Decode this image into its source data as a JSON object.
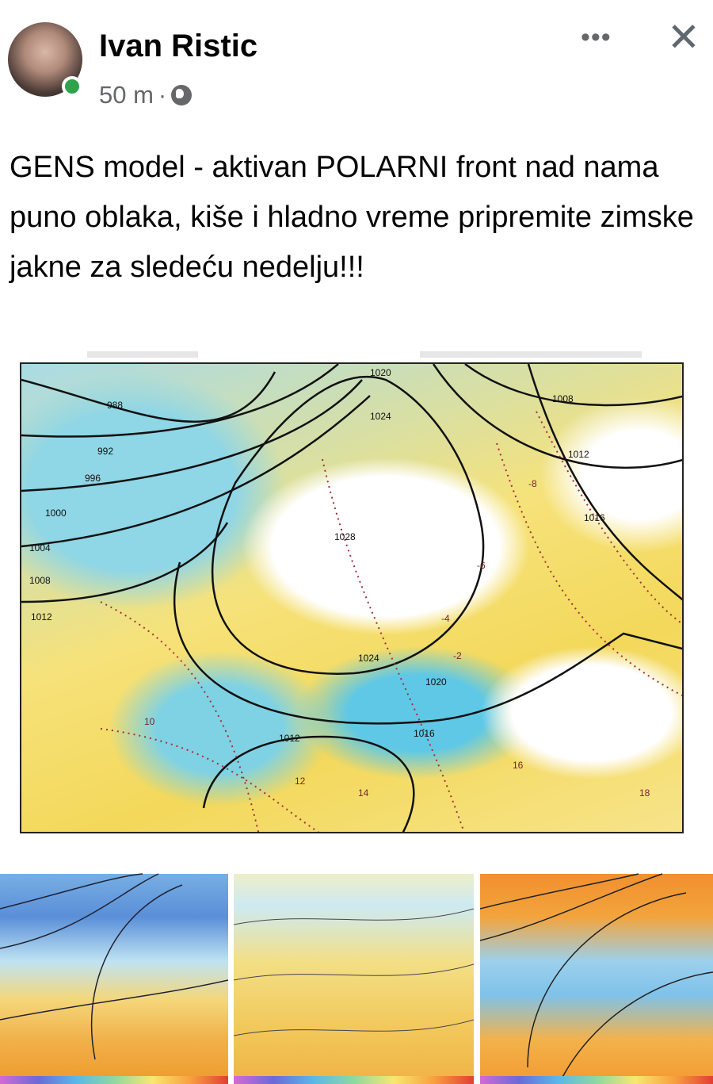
{
  "post": {
    "author": "Ivan Ristic",
    "time": "50 m",
    "separator": "·",
    "audience_icon": "globe-icon",
    "online_color": "#31a24c",
    "more_label": "•••",
    "close_label": "✕",
    "text": "GENS model - aktivan POLARNI front nad nama puno oblaka, kiše i hladno vreme pripremite zimske jakne za sledeću nedelju!!!"
  },
  "main_map": {
    "isobar_labels": [
      "1020",
      "1008",
      "1024",
      "1012",
      "988",
      "992",
      "996",
      "1000",
      "1004",
      "1008",
      "1012",
      "1028",
      "1016",
      "1024",
      "1020",
      "1016",
      "1012"
    ],
    "temp_labels": [
      "-8",
      "-6",
      "-4",
      "-2",
      "10",
      "12",
      "14",
      "16",
      "18"
    ]
  }
}
